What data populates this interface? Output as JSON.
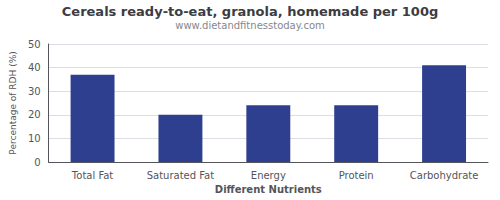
{
  "chart_data": {
    "type": "bar",
    "title": "Cereals ready-to-eat, granola, homemade per 100g",
    "subtitle": "www.dietandfitnesstoday.com",
    "categories": [
      "Total Fat",
      "Saturated Fat",
      "Energy",
      "Protein",
      "Carbohydrate"
    ],
    "values": [
      37,
      20,
      24,
      24,
      41
    ],
    "color": "#2e3f8f",
    "xlabel": "Different Nutrients",
    "ylabel": "Percentage of RDH (%)",
    "ylim": [
      0,
      50
    ],
    "yticks": [
      0,
      10,
      20,
      30,
      40,
      50
    ],
    "grid": true
  }
}
